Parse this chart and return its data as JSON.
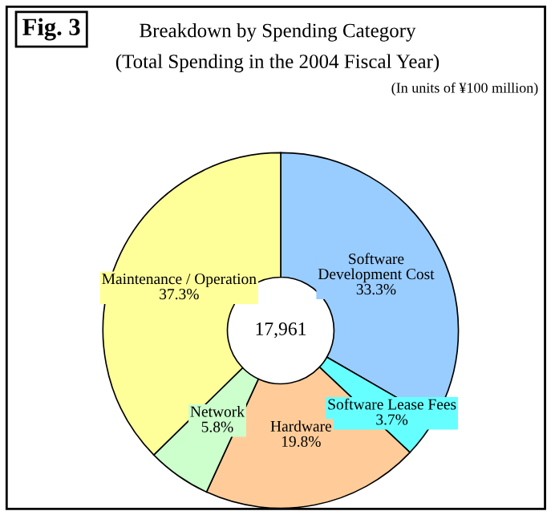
{
  "chart_data": {
    "type": "donut",
    "title": "Breakdown by Spending Category",
    "subtitle": "(Total Spending in the 2004 Fiscal Year)",
    "annotations": [
      "Fig. 3",
      "(In units of ¥100 million)",
      "17,961"
    ],
    "categories": [
      "Software\nDevelopment Cost",
      "Software Lease Fees",
      "Hardware",
      "Network",
      "Maintenance / Operation"
    ],
    "values": [
      33.3,
      3.7,
      19.8,
      5.8,
      37.3
    ],
    "colors": [
      "#99ccff",
      "#66ffff",
      "#ffcc99",
      "#ccffcc",
      "#ffff99"
    ],
    "value_labels": [
      "33.3%",
      "3.7%",
      "19.8%",
      "5.8%",
      "37.3%"
    ]
  }
}
